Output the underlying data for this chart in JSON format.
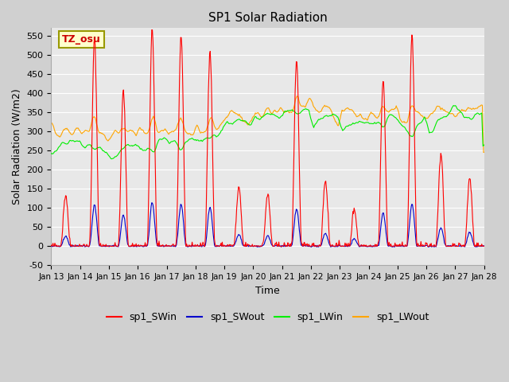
{
  "title": "SP1 Solar Radiation",
  "xlabel": "Time",
  "ylabel": "Solar Radiation (W/m2)",
  "ylim": [
    -50,
    570
  ],
  "yticks": [
    -50,
    0,
    50,
    100,
    150,
    200,
    250,
    300,
    350,
    400,
    450,
    500,
    550
  ],
  "fig_bg": "#d0d0d0",
  "axes_bg": "#e8e8e8",
  "sw_in_color": "#ff0000",
  "sw_out_color": "#0000cc",
  "lw_in_color": "#00ee00",
  "lw_out_color": "#ffa500",
  "tz_label": "TZ_osu",
  "tz_color": "#cc0000",
  "tz_bg": "#ffffcc",
  "tz_border": "#999900",
  "n_days": 15,
  "date_start": 13,
  "legend_labels": [
    "sp1_SWin",
    "sp1_SWout",
    "sp1_LWin",
    "sp1_LWout"
  ],
  "sw_in_amps": [
    0.25,
    1.0,
    0.75,
    1.05,
    1.02,
    0.95,
    0.28,
    0.25,
    0.9,
    0.32,
    0.18,
    0.8,
    1.02,
    0.45,
    0.33
  ],
  "lw_in_base": [
    265,
    258,
    252,
    265,
    272,
    288,
    325,
    340,
    355,
    335,
    318,
    328,
    315,
    332,
    345
  ],
  "lw_out_base": [
    300,
    298,
    295,
    302,
    298,
    308,
    335,
    350,
    362,
    350,
    345,
    350,
    336,
    350,
    358
  ]
}
